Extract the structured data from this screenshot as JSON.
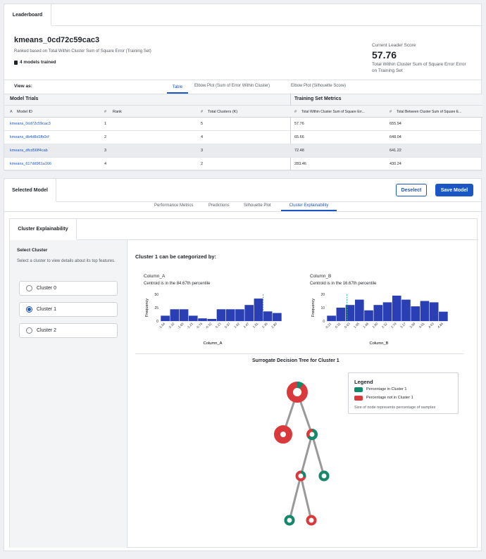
{
  "leaderboard": {
    "tab_label": "Leaderboard",
    "model_name": "kmeans_0cd72c59cac3",
    "ranked_text": "Ranked based on Total Within Cluster Sum of Square Error (Training Set)",
    "models_trained": "4 models trained",
    "leader_score_label": "Current Leader Score",
    "leader_score_value": "57.76",
    "leader_score_desc": "Total Within Cluster Sum of Square Error Error on Training Set"
  },
  "view_as": {
    "label": "View as:",
    "tabs": [
      "Table",
      "Elbow Plot (Sum of Error Within Cluster)",
      "Elbow Plot (Silhouette Score)"
    ],
    "active": "Table"
  },
  "table": {
    "group_left": "Model Trials",
    "group_right": "Training Set Metrics",
    "columns": [
      "Model ID",
      "Rank",
      "Total Clusters (K)",
      "Total Within Cluster Sum of Square Err...",
      "Total Between Cluster Sum of Square E..."
    ],
    "column_icons": [
      "A",
      "#",
      "#",
      "#",
      "#"
    ],
    "rows": [
      {
        "id": "kmeans_0cd72c59cac3",
        "rank": "1",
        "k": "5",
        "within": "57.76",
        "between": "655.94"
      },
      {
        "id": "kmeans_db4d8d1fb0cf",
        "rank": "2",
        "k": "4",
        "within": "65.66",
        "between": "648.04"
      },
      {
        "id": "kmeans_dfcd56ff4cab",
        "rank": "3",
        "k": "3",
        "within": "72.48",
        "between": "641.22"
      },
      {
        "id": "kmeans_617dd961a166",
        "rank": "4",
        "k": "2",
        "within": "283.46",
        "between": "430.24"
      }
    ]
  },
  "selected_model": {
    "tab_label": "Selected Model",
    "deselect": "Deselect",
    "save": "Save Model",
    "tabs": [
      "Performance Metrics",
      "Predictions",
      "Silhouette Plot",
      "Cluster Explainability"
    ],
    "active": "Cluster Explainability"
  },
  "explain": {
    "tab_label": "Cluster Explainability",
    "select_title": "Select Cluster",
    "select_desc": "Select a cluster to view details about its top features.",
    "clusters": [
      "Cluster 0",
      "Cluster 1",
      "Cluster 2"
    ],
    "selected": "Cluster 1",
    "heading": "Cluster 1 can be categorized by:",
    "tree_title": "Surrogate Decision Tree for Cluster 1",
    "legend": {
      "title": "Legend",
      "in": "Percentage in Cluster 1",
      "not": "Percentage not in Cluster 1",
      "note": "Size of node represents percentage of samples"
    }
  },
  "colors": {
    "accent": "#1a56c4",
    "bar": "#2b3fb5",
    "in_cluster": "#0f8a6c",
    "not_cluster": "#d9393b",
    "centroid": "#2fb88a"
  },
  "chart_data": [
    {
      "type": "bar",
      "title": "Column_A",
      "subtitle": "Centroid is in the 84.67th percentile",
      "xlabel": "Column_A",
      "ylabel": "Frequency",
      "ylim": [
        0,
        50
      ],
      "yticks": [
        "50",
        "25",
        "0"
      ],
      "categories": [
        "-2.54",
        "-2.10",
        "-1.65",
        "-1.21",
        "-0.76",
        "-0.32",
        "0.13",
        "0.57",
        "1.02",
        "1.47",
        "1.91",
        "2.36",
        "2.80"
      ],
      "values": [
        10,
        22,
        22,
        10,
        5,
        4,
        22,
        22,
        22,
        30,
        42,
        18,
        15
      ],
      "centroid_percentile": 84.67
    },
    {
      "type": "bar",
      "title": "Column_B",
      "subtitle": "Centroid is in the 16.67th percentile",
      "xlabel": "Column_B",
      "ylabel": "Frequency",
      "ylim": [
        0,
        20
      ],
      "yticks": [
        "20",
        "10",
        "0"
      ],
      "categories": [
        "-0.21",
        "0.31",
        "0.63",
        "1.05",
        "1.48",
        "1.90",
        "2.32",
        "2.74",
        "3.17",
        "3.59",
        "4.01",
        "4.43",
        "4.86"
      ],
      "values": [
        4,
        10,
        12,
        16,
        8,
        12,
        14,
        19,
        16,
        11,
        15,
        14,
        7
      ],
      "centroid_percentile": 16.67
    }
  ]
}
